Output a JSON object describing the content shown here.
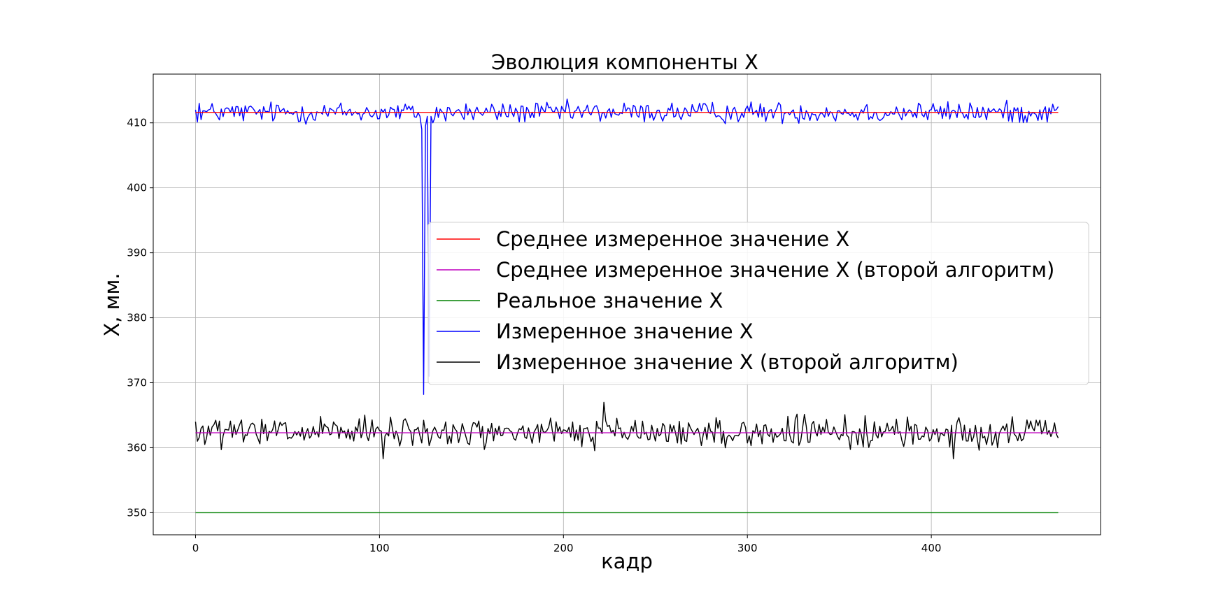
{
  "chart_data": {
    "type": "line",
    "title": "Эволюция компоненты X",
    "xlabel": "кадр",
    "ylabel": "X, мм.",
    "xlim": [
      -23,
      492
    ],
    "ylim": [
      346.6,
      417.5
    ],
    "xticks": [
      0,
      100,
      200,
      300,
      400
    ],
    "yticks": [
      350,
      360,
      370,
      380,
      390,
      400,
      410
    ],
    "grid": true,
    "legend_position": "center-right",
    "n_frames": 470,
    "series": [
      {
        "name": "Среднее измеренное значение X",
        "color": "#ff0000",
        "constant": 411.6
      },
      {
        "name": "Среднее измеренное значение X (второй алгоритм)",
        "color": "#bf00bf",
        "constant": 362.3
      },
      {
        "name": "Реальное значение X",
        "color": "#008000",
        "constant": 350.0
      },
      {
        "name": "Измеренное значение X",
        "color": "#0000ff",
        "mean": 411.6,
        "noise": 2.4,
        "points": [
          [
            0,
            412.0
          ],
          [
            2,
            413.0
          ],
          [
            3,
            410.5
          ],
          [
            122,
            411.0
          ],
          [
            123,
            409.0
          ],
          [
            124,
            368.2
          ],
          [
            125,
            409.5
          ],
          [
            126,
            411.0
          ],
          [
            127,
            371.0
          ],
          [
            128,
            411.0
          ],
          [
            129,
            410.0
          ],
          [
            469,
            412.5
          ]
        ]
      },
      {
        "name": "Измеренное значение X (второй алгоритм)",
        "color": "#000000",
        "mean": 362.3,
        "noise": 3.4,
        "points": [
          [
            0,
            364.0
          ],
          [
            1,
            361.0
          ],
          [
            102,
            358.3
          ],
          [
            222,
            367.0
          ],
          [
            412,
            358.3
          ],
          [
            469,
            361.5
          ]
        ]
      }
    ]
  }
}
